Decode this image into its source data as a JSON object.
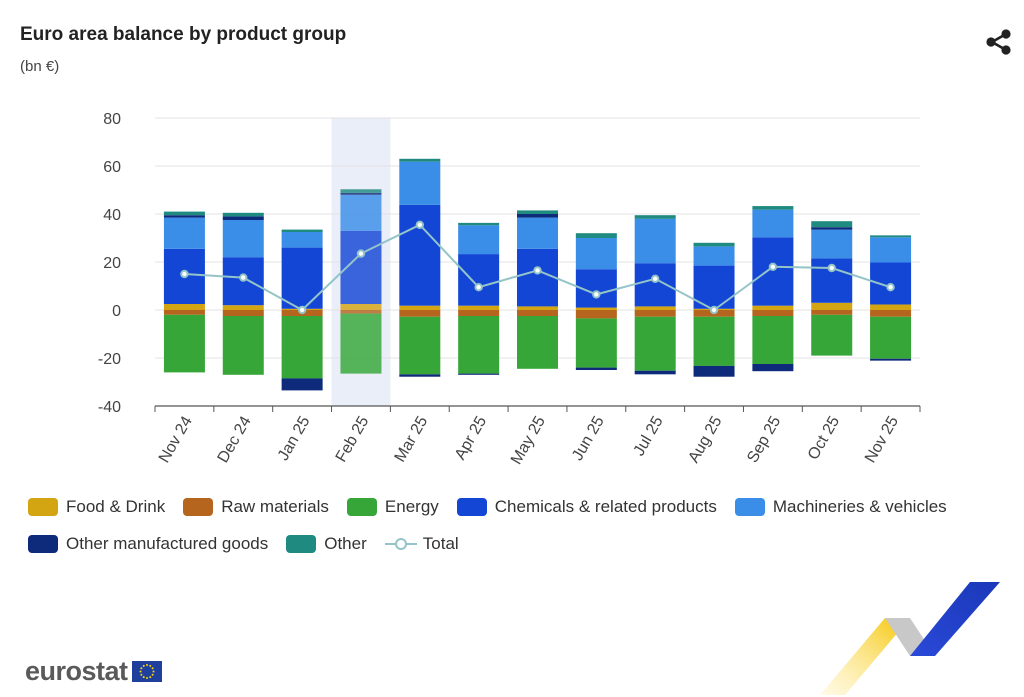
{
  "header": {
    "title": "Euro area balance by product group",
    "subtitle": "(bn €)"
  },
  "icons": {
    "share": "share-icon"
  },
  "branding": {
    "logo_text": "eurostat"
  },
  "colors": {
    "food_drink": "#d4a512",
    "raw_materials": "#b5651d",
    "energy": "#35a637",
    "chemicals": "#1446d6",
    "machineries": "#3b8ee8",
    "other_manufactured": "#0e2a7a",
    "other": "#1e8a80",
    "total": "#93c4c8",
    "highlight_band": "#e9eef9"
  },
  "legend": [
    {
      "label": "Food & Drink",
      "color_key": "food_drink",
      "kind": "bar"
    },
    {
      "label": "Raw materials",
      "color_key": "raw_materials",
      "kind": "bar"
    },
    {
      "label": "Energy",
      "color_key": "energy",
      "kind": "bar"
    },
    {
      "label": "Chemicals & related products",
      "color_key": "chemicals",
      "kind": "bar"
    },
    {
      "label": "Machineries & vehicles",
      "color_key": "machineries",
      "kind": "bar"
    },
    {
      "label": "Other manufactured goods",
      "color_key": "other_manufactured",
      "kind": "bar"
    },
    {
      "label": "Other",
      "color_key": "other",
      "kind": "bar"
    },
    {
      "label": "Total",
      "color_key": "total",
      "kind": "line"
    }
  ],
  "chart_data": {
    "type": "bar",
    "stacked": true,
    "title": "Euro area balance by product group",
    "subtitle": "(bn €)",
    "categories": [
      "Nov 24",
      "Dec 24",
      "Jan 25",
      "Feb 25",
      "Mar 25",
      "Apr 25",
      "May 25",
      "Jun 25",
      "Jul 25",
      "Aug 25",
      "Sep 25",
      "Oct 25",
      "Nov 25"
    ],
    "ylim": [
      -40,
      80
    ],
    "yticks": [
      80,
      60,
      40,
      20,
      0,
      -20,
      -40
    ],
    "highlighted_category": "Feb 25",
    "series": [
      {
        "name": "Food & Drink",
        "key": "food_drink",
        "values": [
          2.5,
          2.0,
          0.5,
          2.5,
          1.8,
          1.8,
          1.5,
          1.0,
          1.5,
          0.5,
          1.8,
          3.0,
          2.3
        ]
      },
      {
        "name": "Raw materials",
        "key": "raw_materials",
        "values": [
          -2.0,
          -2.5,
          -2.5,
          -1.5,
          -2.8,
          -2.5,
          -2.5,
          -3.5,
          -2.8,
          -2.8,
          -2.5,
          -2.0,
          -2.8
        ]
      },
      {
        "name": "Energy",
        "key": "energy",
        "values": [
          -24.0,
          -24.5,
          -26.0,
          -25.0,
          -24.0,
          -24.0,
          -22.0,
          -20.5,
          -22.5,
          -20.5,
          -20.0,
          -17.0,
          -17.5
        ]
      },
      {
        "name": "Chemicals & related products",
        "key": "chemicals",
        "values": [
          23.0,
          20.0,
          25.5,
          30.5,
          42.0,
          21.5,
          24.0,
          16.0,
          18.0,
          18.0,
          28.5,
          18.5,
          17.5
        ]
      },
      {
        "name": "Machineries & vehicles",
        "key": "machineries",
        "values": [
          13.0,
          15.5,
          6.5,
          15.0,
          18.0,
          12.0,
          13.0,
          13.0,
          18.5,
          8.0,
          11.5,
          12.0,
          10.5
        ]
      },
      {
        "name": "Other manufactured goods",
        "key": "other_manufactured",
        "values": [
          1.0,
          1.5,
          -5.0,
          0.8,
          -1.0,
          -0.5,
          1.5,
          -1.0,
          -1.5,
          -4.5,
          -3.0,
          1.0,
          -0.8
        ]
      },
      {
        "name": "Other",
        "key": "other",
        "values": [
          1.5,
          1.5,
          1.0,
          1.5,
          1.2,
          1.0,
          1.5,
          2.0,
          1.5,
          1.5,
          1.5,
          2.5,
          0.8
        ]
      }
    ],
    "total": {
      "name": "Total",
      "key": "total",
      "values": [
        15.0,
        13.5,
        0.0,
        23.5,
        35.5,
        9.5,
        16.5,
        6.5,
        13.0,
        0.0,
        18.0,
        17.5,
        9.5
      ]
    }
  }
}
